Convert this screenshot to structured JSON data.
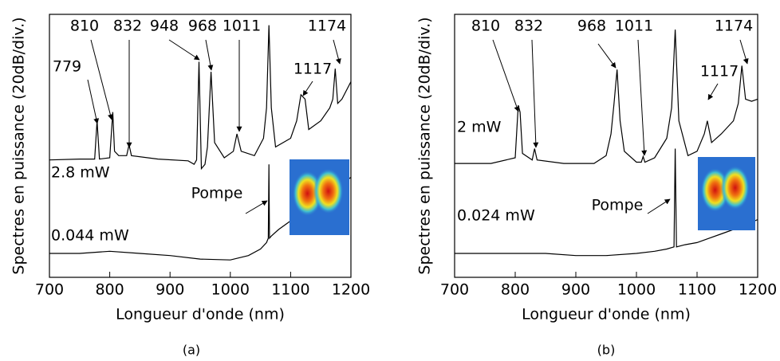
{
  "chart_data": [
    {
      "type": "line",
      "xlabel": "Longueur d'onde (nm)",
      "ylabel": "Spectres en puissance (20dB/div.)",
      "caption": "(a)",
      "xlim": [
        700,
        1200
      ],
      "xticks": [
        700,
        800,
        900,
        1000,
        1100,
        1200
      ],
      "ylim": [
        0,
        6.05
      ],
      "series": [
        {
          "name": "2.8 mW",
          "color": "#000000",
          "x": [
            700,
            750,
            775,
            779,
            783,
            800,
            805,
            808,
            815,
            828,
            832,
            836,
            880,
            930,
            940,
            944,
            948,
            952,
            958,
            962,
            968,
            974,
            990,
            1005,
            1011,
            1018,
            1040,
            1055,
            1060,
            1064,
            1068,
            1075,
            1100,
            1110,
            1117,
            1124,
            1130,
            1150,
            1165,
            1170,
            1174,
            1178,
            1185,
            1200
          ],
          "values": [
            2.7,
            2.72,
            2.72,
            3.6,
            2.72,
            2.75,
            3.8,
            2.9,
            2.8,
            2.8,
            3.05,
            2.8,
            2.72,
            2.68,
            2.6,
            2.7,
            4.96,
            2.5,
            2.6,
            3.0,
            4.73,
            3.1,
            2.75,
            2.9,
            3.3,
            2.9,
            2.8,
            3.2,
            3.9,
            5.8,
            3.9,
            3.0,
            3.2,
            3.6,
            4.2,
            4.1,
            3.4,
            3.6,
            3.9,
            4.1,
            4.8,
            4.0,
            4.1,
            4.5
          ]
        },
        {
          "name": "0.044 mW",
          "color": "#000000",
          "x": [
            700,
            750,
            800,
            850,
            900,
            950,
            1000,
            1030,
            1050,
            1060,
            1063,
            1064,
            1065,
            1068,
            1080,
            1100,
            1120,
            1140,
            1160,
            1180,
            1200
          ],
          "values": [
            0.55,
            0.55,
            0.6,
            0.55,
            0.5,
            0.42,
            0.4,
            0.5,
            0.65,
            0.8,
            0.9,
            2.6,
            0.9,
            0.95,
            1.1,
            1.3,
            1.5,
            1.7,
            1.9,
            2.1,
            2.3
          ]
        }
      ],
      "annotations": [
        "779",
        "810",
        "832",
        "948",
        "968",
        "1011",
        "1117",
        "1174",
        "Pompe"
      ]
    },
    {
      "type": "line",
      "xlabel": "Longueur d'onde (nm)",
      "ylabel": "Spectres en puissance (20dB/div.)",
      "caption": "(b)",
      "xlim": [
        700,
        1200
      ],
      "xticks": [
        700,
        800,
        900,
        1000,
        1100,
        1200
      ],
      "ylim": [
        0,
        6.05
      ],
      "series": [
        {
          "name": "2 mW",
          "color": "#000000",
          "x": [
            700,
            760,
            800,
            805,
            808,
            812,
            828,
            832,
            836,
            880,
            930,
            950,
            958,
            963,
            968,
            973,
            980,
            1000,
            1008,
            1011,
            1014,
            1030,
            1050,
            1058,
            1064,
            1070,
            1085,
            1100,
            1112,
            1117,
            1124,
            1140,
            1160,
            1168,
            1174,
            1180,
            1190,
            1200
          ],
          "values": [
            2.62,
            2.62,
            2.75,
            3.96,
            3.8,
            2.85,
            2.7,
            2.96,
            2.7,
            2.62,
            2.62,
            2.8,
            3.3,
            4.0,
            4.78,
            3.6,
            2.9,
            2.65,
            2.65,
            2.78,
            2.65,
            2.75,
            3.2,
            3.9,
            5.7,
            3.6,
            2.8,
            2.9,
            3.3,
            3.6,
            3.1,
            3.3,
            3.6,
            4.0,
            4.87,
            4.1,
            4.05,
            4.1
          ]
        },
        {
          "name": "0.024 mW",
          "color": "#000000",
          "x": [
            700,
            750,
            800,
            850,
            900,
            950,
            1000,
            1030,
            1050,
            1062,
            1064,
            1066,
            1080,
            1100,
            1120,
            1140,
            1160,
            1180,
            1200
          ],
          "values": [
            0.55,
            0.55,
            0.55,
            0.55,
            0.5,
            0.5,
            0.55,
            0.6,
            0.65,
            0.7,
            2.96,
            0.7,
            0.75,
            0.8,
            0.9,
            1.0,
            1.1,
            1.2,
            1.33
          ]
        }
      ],
      "annotations": [
        "810",
        "832",
        "968",
        "1011",
        "1117",
        "1174",
        "Pompe"
      ]
    }
  ]
}
